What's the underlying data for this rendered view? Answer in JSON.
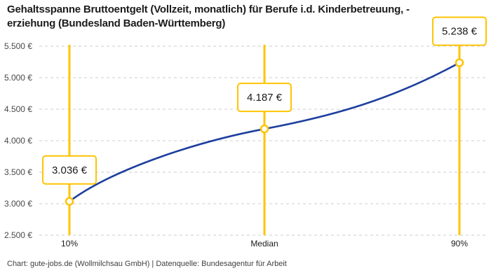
{
  "title": "Gehaltsspanne Bruttoentgelt (Vollzeit, monatlich) für Berufe i.d. Kinderbetreuung, -\nerziehung (Bundesland Baden-Württemberg)",
  "footer": "Chart: gute-jobs.de (Wollmilchsau GmbH) | Datenquelle: Bundesagentur für Arbeit",
  "colors": {
    "accent_yellow": "#FFC402",
    "line_blue": "#1D3F9E",
    "grid": "#CCCCCC",
    "text_primary": "#1A1A1A",
    "text_secondary": "#494949",
    "background": "#FFFFFF"
  },
  "chart_data": {
    "type": "line",
    "title": "Gehaltsspanne Bruttoentgelt (Vollzeit, monatlich) für Berufe i.d. Kinderbetreuung, -erziehung (Bundesland Baden-Württemberg)",
    "x_categories": [
      "10%",
      "Median",
      "90%"
    ],
    "values": [
      3036,
      4187,
      5238
    ],
    "point_labels": [
      "3.036 €",
      "4.187 €",
      "5.238 €"
    ],
    "ylim": [
      2500,
      5500
    ],
    "yticks": [
      {
        "value": 5500,
        "label": "5.500 €"
      },
      {
        "value": 5000,
        "label": "5.000 €"
      },
      {
        "value": 4500,
        "label": "4.500 €"
      },
      {
        "value": 4000,
        "label": "4.000 €"
      },
      {
        "value": 3500,
        "label": "3.500 €"
      },
      {
        "value": 3000,
        "label": "3.000 €"
      },
      {
        "value": 2500,
        "label": "2.500 €"
      }
    ],
    "grid": "horizontal dashed",
    "legend": "none",
    "annotations": "vertical yellow percentile lines at 10%, Median, 90% with white value callout boxes and open circle markers on a dark blue smooth curve",
    "source": "Chart: gute-jobs.de (Wollmilchsau GmbH) | Datenquelle: Bundesagentur für Arbeit"
  }
}
